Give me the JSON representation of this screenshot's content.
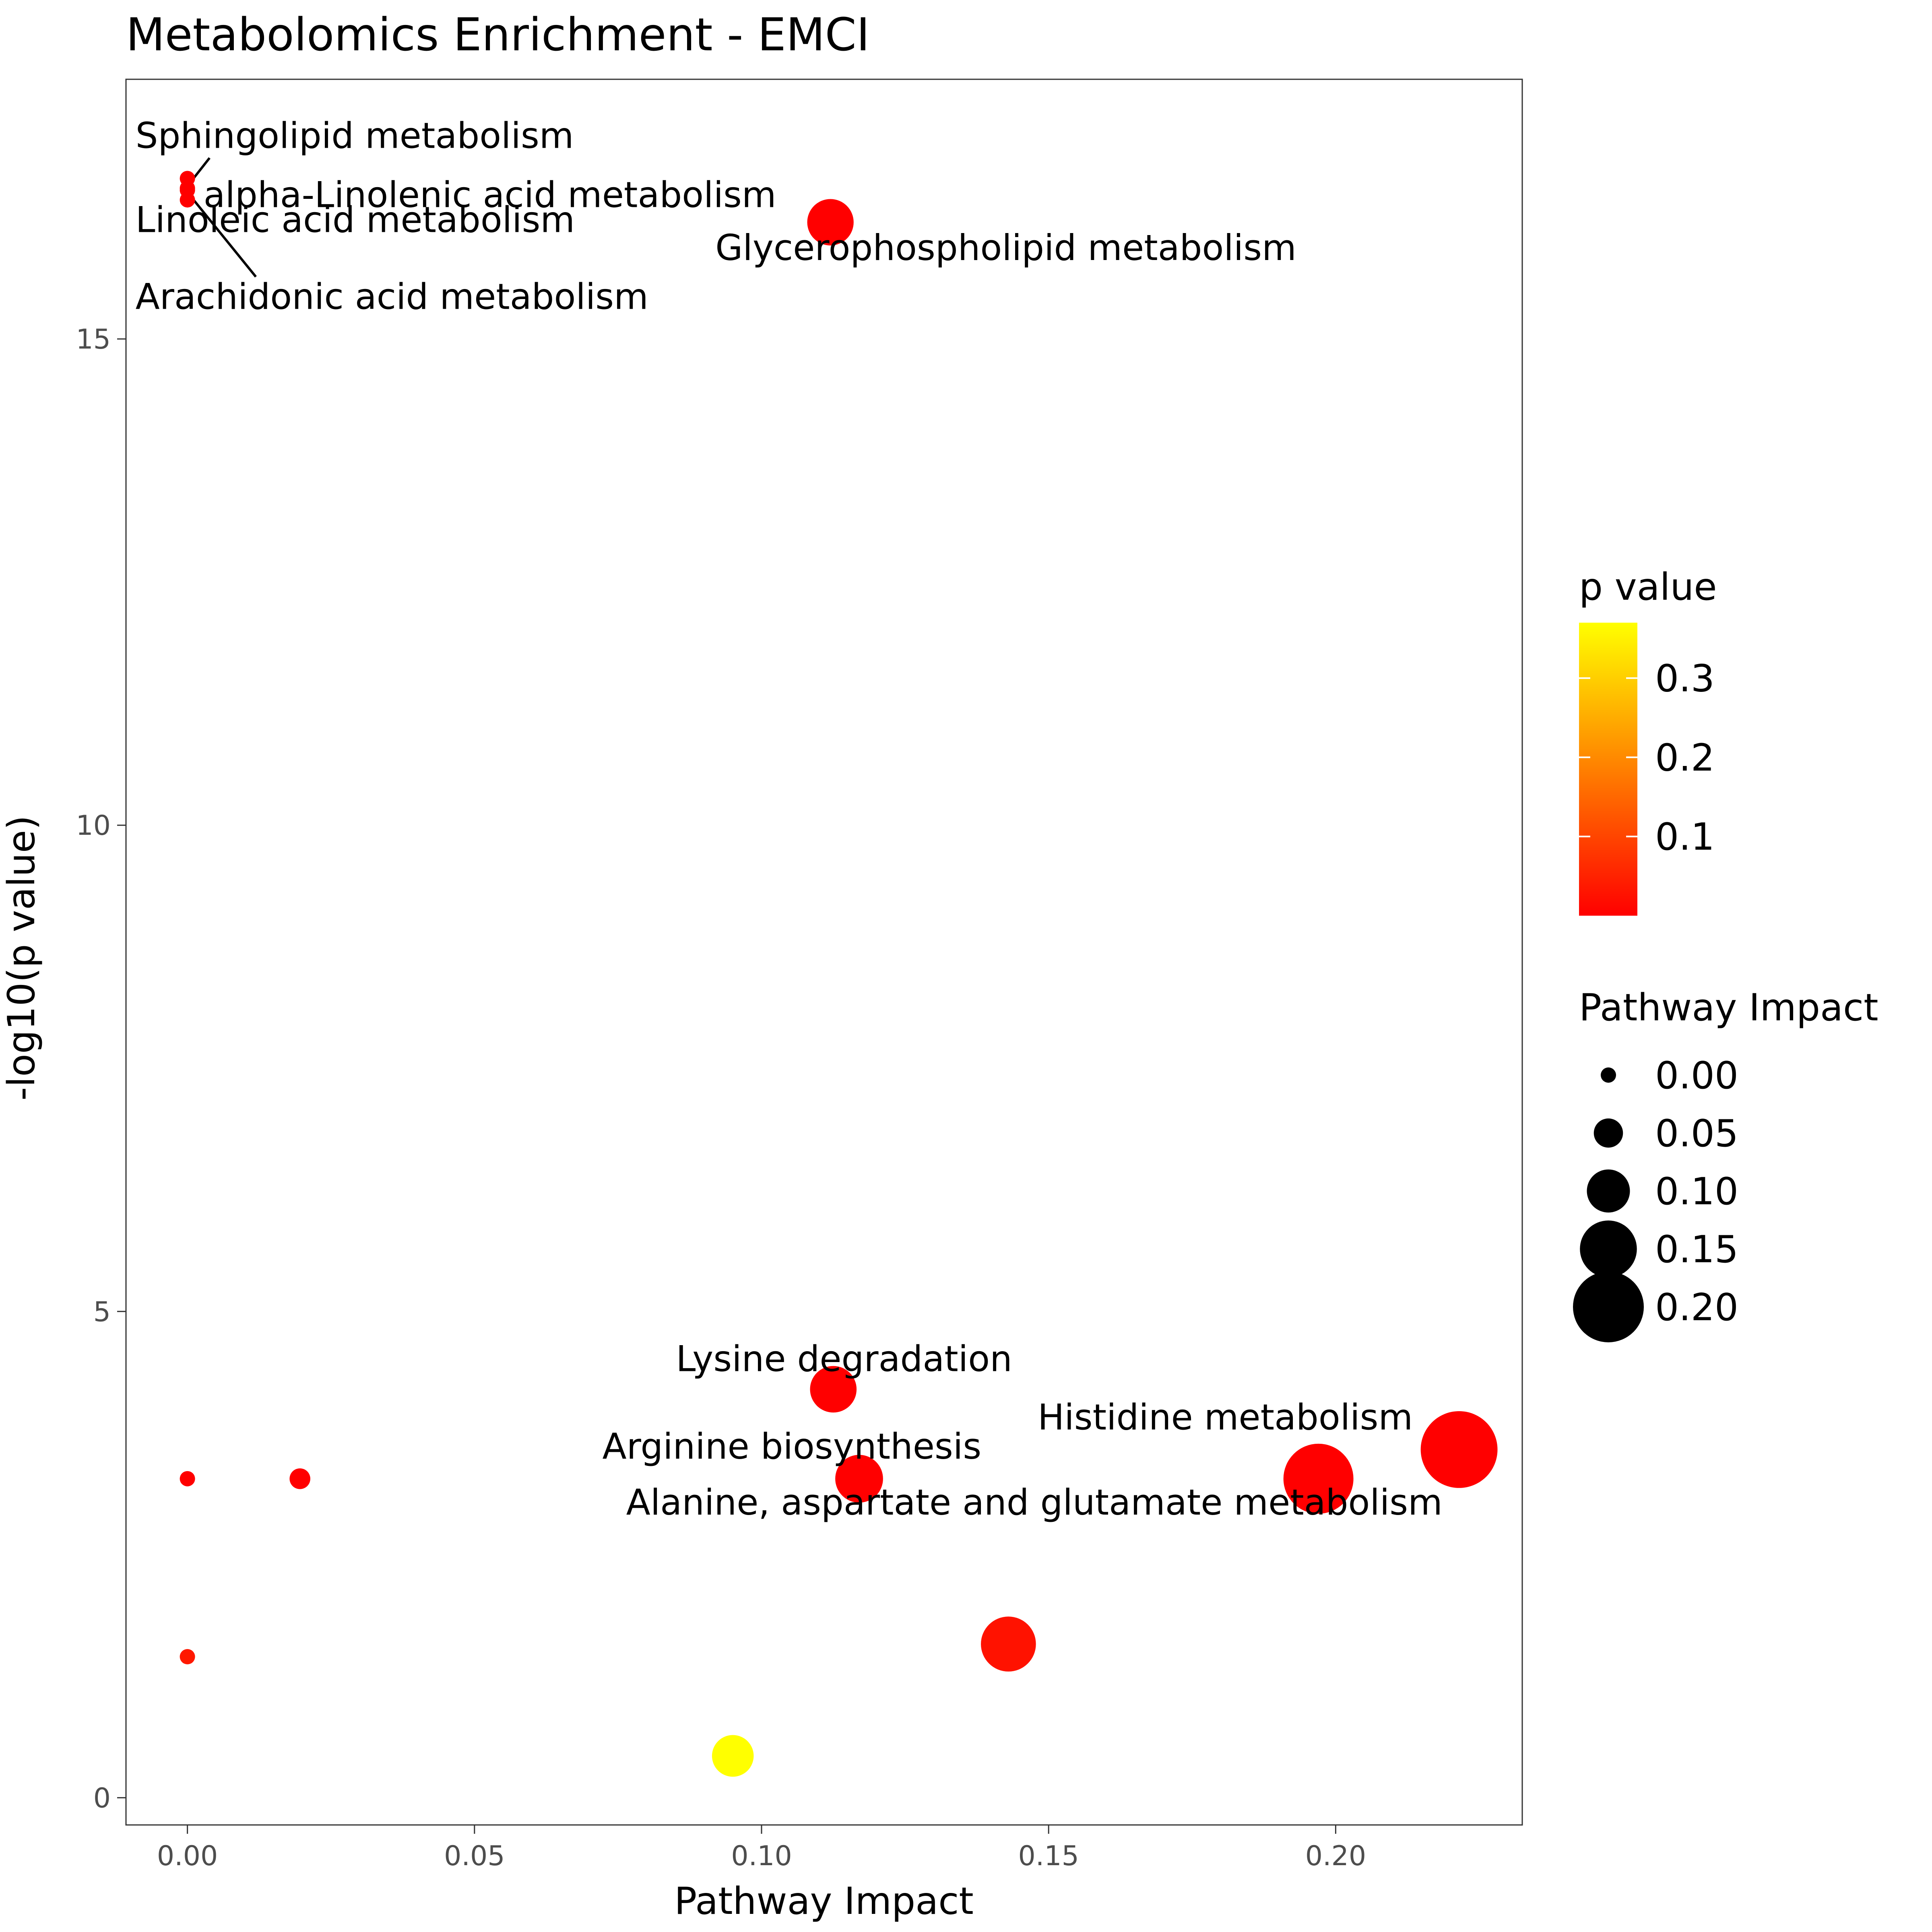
{
  "chart_data": {
    "type": "scatter",
    "title": "Metabolomics Enrichment - EMCI",
    "xlabel": "Pathway Impact",
    "ylabel": "-log10(p value)",
    "xlim": [
      -0.0107,
      0.2325
    ],
    "ylim": [
      -0.28,
      17.67
    ],
    "x_ticks": [
      0.0,
      0.05,
      0.1,
      0.15,
      0.2
    ],
    "x_tick_labels": [
      "0.00",
      "0.05",
      "0.10",
      "0.15",
      "0.20"
    ],
    "y_ticks": [
      0,
      5,
      10,
      15
    ],
    "y_tick_labels": [
      "0",
      "5",
      "10",
      "15"
    ],
    "grid": false,
    "color_legend": {
      "title": "p value",
      "min": 0.0,
      "max": 0.37,
      "low_color": "#ff0000",
      "high_color": "#ffff00",
      "breaks": [
        0.1,
        0.2,
        0.3
      ],
      "labels": [
        "0.1",
        "0.2",
        "0.3"
      ]
    },
    "size_legend": {
      "title": "Pathway Impact",
      "breaks": [
        0.0,
        0.05,
        0.1,
        0.15,
        0.2
      ],
      "labels": [
        "0.00",
        "0.05",
        "0.10",
        "0.15",
        "0.20"
      ]
    },
    "legend_position": "right",
    "points": [
      {
        "x": 0.0,
        "y": 16.6,
        "p": 0.0,
        "label": "Sphingolipid metabolism"
      },
      {
        "x": 0.0,
        "y": 16.5,
        "p": 0.0,
        "label": "alpha-Linolenic acid metabolism"
      },
      {
        "x": 0.0,
        "y": 16.6,
        "p": 0.0,
        "label": "Linoleic acid metabolism"
      },
      {
        "x": 0.0,
        "y": 16.5,
        "p": 0.0,
        "label": "Arachidonic acid metabolism"
      },
      {
        "x": 0.112,
        "y": 16.2,
        "p": 0.0,
        "label": "Glycerophospholipid metabolism"
      },
      {
        "x": 0.1125,
        "y": 4.2,
        "p": 0.0001,
        "label": "Lysine degradation"
      },
      {
        "x": 0.117,
        "y": 3.28,
        "p": 0.0005,
        "label": "Arginine biosynthesis"
      },
      {
        "x": 0.197,
        "y": 3.28,
        "p": 0.0005,
        "label": "Alanine, aspartate and glutamate metabolism"
      },
      {
        "x": 0.2215,
        "y": 3.58,
        "p": 0.0003,
        "label": "Histidine metabolism"
      },
      {
        "x": 0.0,
        "y": 3.28,
        "p": 0.0005,
        "label": ""
      },
      {
        "x": 0.0196,
        "y": 3.28,
        "p": 0.0005,
        "label": ""
      },
      {
        "x": 0.0,
        "y": 1.45,
        "p": 0.035,
        "label": ""
      },
      {
        "x": 0.143,
        "y": 1.58,
        "p": 0.026,
        "label": ""
      },
      {
        "x": 0.095,
        "y": 0.43,
        "p": 0.37,
        "label": ""
      }
    ]
  }
}
